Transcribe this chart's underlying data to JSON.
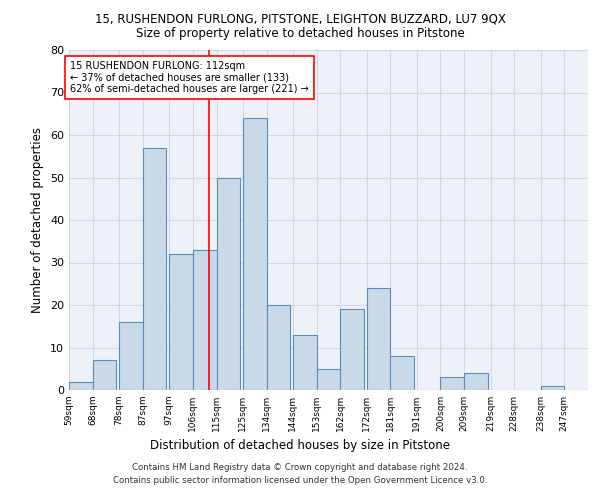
{
  "title1": "15, RUSHENDON FURLONG, PITSTONE, LEIGHTON BUZZARD, LU7 9QX",
  "title2": "Size of property relative to detached houses in Pitstone",
  "xlabel": "Distribution of detached houses by size in Pitstone",
  "ylabel": "Number of detached properties",
  "footer1": "Contains HM Land Registry data © Crown copyright and database right 2024.",
  "footer2": "Contains public sector information licensed under the Open Government Licence v3.0.",
  "annotation_line1": "15 RUSHENDON FURLONG: 112sqm",
  "annotation_line2": "← 37% of detached houses are smaller (133)",
  "annotation_line3": "62% of semi-detached houses are larger (221) →",
  "bar_left_edges": [
    59,
    68,
    78,
    87,
    97,
    106,
    115,
    125,
    134,
    144,
    153,
    162,
    172,
    181,
    191,
    200,
    209,
    219,
    228,
    238,
    247
  ],
  "bar_heights": [
    2,
    7,
    16,
    57,
    32,
    33,
    50,
    64,
    20,
    13,
    5,
    19,
    24,
    8,
    0,
    3,
    4,
    0,
    0,
    1,
    0
  ],
  "bin_width": 9,
  "bar_color": "#c9d9e8",
  "bar_edgecolor": "#5b8db8",
  "bar_linewidth": 0.8,
  "grid_color": "#d0d8e8",
  "plot_bg_color": "#eef2f8",
  "vline_x": 112,
  "vline_color": "red",
  "ylim": [
    0,
    80
  ],
  "yticks": [
    0,
    10,
    20,
    30,
    40,
    50,
    60,
    70,
    80
  ],
  "annotation_box_color": "white",
  "annotation_box_edgecolor": "red",
  "x_tick_labels": [
    "59sqm",
    "68sqm",
    "78sqm",
    "87sqm",
    "97sqm",
    "106sqm",
    "115sqm",
    "125sqm",
    "134sqm",
    "144sqm",
    "153sqm",
    "162sqm",
    "172sqm",
    "181sqm",
    "191sqm",
    "200sqm",
    "209sqm",
    "219sqm",
    "228sqm",
    "238sqm",
    "247sqm"
  ]
}
